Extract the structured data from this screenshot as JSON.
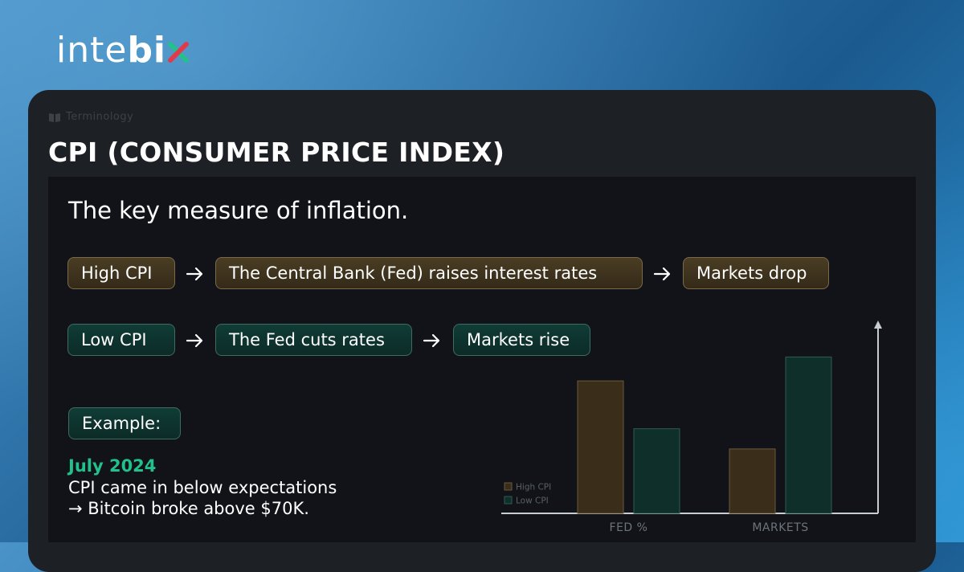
{
  "brand": {
    "name_light": "inte",
    "name_bold": "bi",
    "name_x": "x",
    "colors": {
      "x_left": "#22c08a",
      "x_right": "#e23a4a"
    }
  },
  "header": {
    "eyebrow": "Terminology",
    "eyebrow_icon": "book-icon",
    "title": "CPI (CONSUMER PRICE INDEX)"
  },
  "content": {
    "subtitle": "The key measure of inflation.",
    "high_flow": [
      "High CPI",
      "The Central Bank (Fed) raises interest rates",
      "Markets drop"
    ],
    "low_flow": [
      "Low CPI",
      "The Fed cuts rates",
      "Markets rise"
    ],
    "example": {
      "label": "Example:",
      "date": "July 2024",
      "line1": "CPI came in below expectations",
      "line2": "→ Bitcoin broke above $70K."
    }
  },
  "chart_data": {
    "type": "bar",
    "categories": [
      "FED %",
      "MARKETS"
    ],
    "series": [
      {
        "name": "High CPI",
        "values": [
          0.72,
          0.35
        ],
        "color": "#3a2e1a",
        "stroke": "#6a5a3a"
      },
      {
        "name": "Low CPI",
        "values": [
          0.46,
          0.85
        ],
        "color": "#0e2f2a",
        "stroke": "#2e5c52"
      }
    ],
    "ylim": [
      0,
      1
    ],
    "legend_position": "bottom-left",
    "grid": false
  }
}
